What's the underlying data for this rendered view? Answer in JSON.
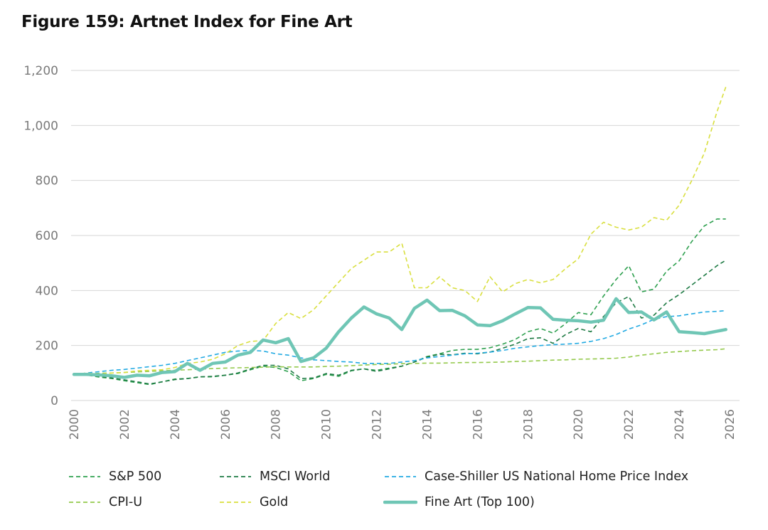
{
  "title": "Figure 159: Artnet Index for Fine Art",
  "chart_data": {
    "type": "line",
    "title": "Figure 159: Artnet Index for Fine Art",
    "xlabel": "",
    "ylabel": "",
    "xlim": [
      2000,
      2026
    ],
    "ylim": [
      0,
      1200
    ],
    "x_ticks": [
      "2000",
      "2002",
      "2004",
      "2006",
      "2008",
      "2010",
      "2012",
      "2014",
      "2016",
      "2018",
      "2020",
      "2022",
      "2024",
      "2026"
    ],
    "y_ticks": [
      "0",
      "200",
      "400",
      "600",
      "800",
      "1,000",
      "1,200"
    ],
    "grid": "horizontal",
    "legend_position": "bottom",
    "x": [
      2000,
      2000.5,
      2001,
      2001.5,
      2002,
      2002.5,
      2003,
      2003.5,
      2004,
      2004.5,
      2005,
      2005.5,
      2006,
      2006.5,
      2007,
      2007.5,
      2008,
      2008.5,
      2009,
      2009.5,
      2010,
      2010.5,
      2011,
      2011.5,
      2012,
      2012.5,
      2013,
      2013.5,
      2014,
      2014.5,
      2015,
      2015.5,
      2016,
      2016.5,
      2017,
      2017.5,
      2018,
      2018.5,
      2019,
      2019.5,
      2020,
      2020.5,
      2021,
      2021.5,
      2022,
      2022.5,
      2023,
      2023.5,
      2024,
      2024.5,
      2025,
      2025.5,
      2025.85
    ],
    "series": [
      {
        "name": "S&P 500",
        "color": "#2ea04f",
        "style": "dashed",
        "values": [
          95,
          93,
          85,
          80,
          72,
          65,
          58,
          68,
          78,
          80,
          86,
          86,
          92,
          98,
          112,
          125,
          120,
          105,
          72,
          80,
          95,
          88,
          108,
          115,
          110,
          118,
          125,
          140,
          160,
          170,
          182,
          186,
          186,
          192,
          205,
          222,
          250,
          262,
          245,
          280,
          320,
          312,
          380,
          440,
          490,
          395,
          405,
          470,
          508,
          578,
          635,
          660,
          660
        ]
      },
      {
        "name": "MSCI World",
        "color": "#1d7a43",
        "style": "dashed",
        "values": [
          95,
          92,
          88,
          82,
          75,
          68,
          60,
          68,
          76,
          80,
          86,
          88,
          92,
          100,
          115,
          128,
          128,
          115,
          80,
          82,
          98,
          92,
          110,
          115,
          106,
          115,
          125,
          140,
          158,
          168,
          166,
          172,
          170,
          176,
          190,
          205,
          225,
          228,
          208,
          240,
          262,
          250,
          305,
          355,
          378,
          300,
          310,
          355,
          385,
          420,
          455,
          490,
          510
        ]
      },
      {
        "name": "Case-Shiller US National Home Price Index",
        "color": "#22aae2",
        "style": "dashed",
        "values": [
          95,
          100,
          105,
          110,
          113,
          118,
          123,
          128,
          135,
          145,
          155,
          165,
          175,
          180,
          182,
          180,
          170,
          165,
          155,
          148,
          145,
          142,
          140,
          135,
          135,
          135,
          140,
          145,
          155,
          160,
          165,
          170,
          172,
          176,
          182,
          190,
          195,
          200,
          203,
          205,
          208,
          215,
          225,
          240,
          260,
          275,
          295,
          305,
          308,
          315,
          322,
          324,
          327
        ]
      },
      {
        "name": "CPI-U",
        "color": "#94c94c",
        "style": "dashed",
        "values": [
          95,
          97,
          99,
          100,
          102,
          104,
          106,
          108,
          110,
          112,
          114,
          116,
          118,
          119,
          120,
          121,
          123,
          122,
          122,
          122,
          124,
          125,
          127,
          129,
          131,
          132,
          134,
          135,
          136,
          136,
          137,
          138,
          138,
          139,
          140,
          142,
          143,
          145,
          147,
          148,
          150,
          151,
          152,
          154,
          158,
          165,
          170,
          175,
          178,
          181,
          183,
          185,
          188
        ]
      },
      {
        "name": "Gold",
        "color": "#d9df3f",
        "style": "dashed",
        "values": [
          95,
          100,
          96,
          100,
          102,
          108,
          110,
          112,
          120,
          135,
          140,
          150,
          170,
          200,
          215,
          218,
          280,
          320,
          298,
          330,
          380,
          430,
          480,
          510,
          540,
          540,
          572,
          410,
          410,
          450,
          410,
          400,
          360,
          450,
          395,
          425,
          440,
          428,
          440,
          480,
          515,
          605,
          648,
          630,
          620,
          630,
          665,
          655,
          710,
          800,
          900,
          1050,
          1140
        ]
      },
      {
        "name": "Fine Art (Top 100)",
        "color": "#6fc6b5",
        "style": "solid",
        "values": [
          95,
          95,
          93,
          90,
          84,
          92,
          90,
          102,
          105,
          135,
          110,
          135,
          140,
          165,
          175,
          220,
          210,
          225,
          142,
          155,
          190,
          250,
          300,
          340,
          315,
          300,
          258,
          335,
          365,
          327,
          328,
          308,
          275,
          272,
          290,
          315,
          338,
          337,
          295,
          292,
          290,
          285,
          292,
          370,
          320,
          322,
          293,
          322,
          250,
          247,
          243,
          252,
          258
        ]
      }
    ]
  },
  "legend": {
    "rows": [
      [
        {
          "label": "S&P 500",
          "series": 0
        },
        {
          "label": "MSCI World",
          "series": 1
        },
        {
          "label": "Case-Shiller US National Home Price Index",
          "series": 2
        }
      ],
      [
        {
          "label": "CPI-U",
          "series": 3
        },
        {
          "label": "Gold",
          "series": 4
        },
        {
          "label": "Fine Art (Top 100)",
          "series": 5
        }
      ]
    ]
  }
}
